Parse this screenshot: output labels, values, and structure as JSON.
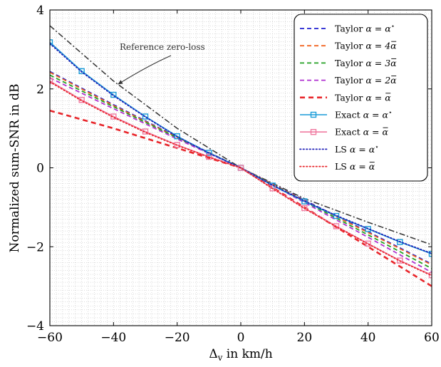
{
  "chart_data": {
    "type": "line",
    "title": "",
    "xlabel": "Δv in km/h",
    "xlabel_main": "Δ",
    "xlabel_sub": "v",
    "xlabel_rest": " in km/h",
    "ylabel": "Normalized sum-SNR in dB",
    "xlim": [
      -60,
      60
    ],
    "ylim": [
      -4,
      4
    ],
    "xticks": [
      -60,
      -40,
      -20,
      0,
      20,
      40,
      60
    ],
    "yticks": [
      -4,
      -2,
      0,
      2,
      4
    ],
    "xtick_labels": [
      "−60",
      "−40",
      "−20",
      "0",
      "20",
      "40",
      "60"
    ],
    "ytick_labels": [
      "−4",
      "−2",
      "0",
      "2",
      "4"
    ],
    "grid": "dense dotted minor grid",
    "legend_position": "top-right",
    "annotation": {
      "text": "Reference zero-loss",
      "target": [
        -40,
        2.1
      ]
    },
    "reference": {
      "name": "Reference zero-loss",
      "color": "#333333",
      "x": [
        -60,
        -40,
        -20,
        0,
        20,
        40,
        60
      ],
      "y": [
        3.6,
        2.2,
        1.0,
        0.0,
        -0.78,
        -1.38,
        -1.95
      ]
    },
    "series": [
      {
        "name": "Taylor α = α*",
        "label_prefix": "Taylor",
        "label_alpha": "α = α",
        "label_sup": "⋆",
        "label_bar": false,
        "color": "#1f1fd0",
        "style": "dashed",
        "x": [
          -60,
          -40,
          -20,
          0,
          20,
          40,
          60
        ],
        "y": [
          2.44,
          1.6,
          0.78,
          0.0,
          -0.82,
          -1.62,
          -2.44
        ]
      },
      {
        "name": "Taylor α = 4ᾱ",
        "label_prefix": "Taylor",
        "label_alpha": "α = 4α",
        "label_sup": "",
        "label_bar": true,
        "color": "#f26522",
        "style": "dashed",
        "x": [
          -60,
          -40,
          -20,
          0,
          20,
          40,
          60
        ],
        "y": [
          2.42,
          1.58,
          0.77,
          0.0,
          -0.83,
          -1.64,
          -2.46
        ]
      },
      {
        "name": "Taylor α = 3ᾱ",
        "label_prefix": "Taylor",
        "label_alpha": "α = 3α",
        "label_sup": "",
        "label_bar": true,
        "color": "#22a022",
        "style": "dashed",
        "x": [
          -60,
          -40,
          -20,
          0,
          20,
          40,
          60
        ],
        "y": [
          2.35,
          1.55,
          0.76,
          0.0,
          -0.85,
          -1.7,
          -2.55
        ]
      },
      {
        "name": "Taylor α = 2ᾱ",
        "label_prefix": "Taylor",
        "label_alpha": "α = 2α",
        "label_sup": "",
        "label_bar": true,
        "color": "#b030d0",
        "style": "dashed",
        "x": [
          -60,
          -40,
          -20,
          0,
          20,
          40,
          60
        ],
        "y": [
          2.28,
          1.5,
          0.73,
          0.0,
          -0.88,
          -1.76,
          -2.65
        ]
      },
      {
        "name": "Taylor α = ᾱ",
        "label_prefix": "Taylor",
        "label_alpha": "α = α",
        "label_sup": "",
        "label_bar": true,
        "color": "#e8262b",
        "style": "dashed-bold",
        "x": [
          -60,
          -40,
          -20,
          0,
          20,
          40,
          60
        ],
        "y": [
          1.45,
          1.0,
          0.5,
          0.0,
          -1.0,
          -2.0,
          -3.0
        ]
      },
      {
        "name": "Exact α = α*",
        "label_prefix": "Exact",
        "label_alpha": "α = α",
        "label_sup": "⋆",
        "label_bar": false,
        "color": "#1a9cd8",
        "style": "solid-square",
        "x": [
          -60,
          -50,
          -40,
          -30,
          -20,
          -10,
          0,
          10,
          20,
          30,
          40,
          50,
          60
        ],
        "y": [
          3.18,
          2.45,
          1.85,
          1.3,
          0.8,
          0.38,
          0.0,
          -0.45,
          -0.85,
          -1.22,
          -1.55,
          -1.88,
          -2.18
        ]
      },
      {
        "name": "Exact α = ᾱ",
        "label_prefix": "Exact",
        "label_alpha": "α = α",
        "label_sup": "",
        "label_bar": true,
        "color": "#f07aa0",
        "style": "solid-square",
        "x": [
          -60,
          -50,
          -40,
          -30,
          -20,
          -10,
          0,
          10,
          20,
          30,
          40,
          50,
          60
        ],
        "y": [
          2.2,
          1.72,
          1.3,
          0.92,
          0.58,
          0.28,
          0.0,
          -0.52,
          -1.02,
          -1.48,
          -1.92,
          -2.35,
          -2.72
        ]
      },
      {
        "name": "LS α = α*",
        "label_prefix": "LS",
        "label_alpha": "α = α",
        "label_sup": "⋆",
        "label_bar": false,
        "color": "#2020b8",
        "style": "dotted",
        "x": [
          -60,
          -50,
          -40,
          -30,
          -20,
          -10,
          0,
          10,
          20,
          30,
          40,
          50,
          60
        ],
        "y": [
          3.15,
          2.43,
          1.83,
          1.29,
          0.79,
          0.37,
          0.0,
          -0.44,
          -0.84,
          -1.21,
          -1.54,
          -1.87,
          -2.17
        ]
      },
      {
        "name": "LS α = ᾱ",
        "label_prefix": "LS",
        "label_alpha": "α = α",
        "label_sup": "",
        "label_bar": true,
        "color": "#e8262b",
        "style": "dotted",
        "x": [
          -60,
          -50,
          -40,
          -30,
          -20,
          -10,
          0,
          10,
          20,
          30,
          40,
          50,
          60
        ],
        "y": [
          2.18,
          1.7,
          1.28,
          0.9,
          0.57,
          0.27,
          0.0,
          -0.53,
          -1.03,
          -1.49,
          -1.93,
          -2.36,
          -2.73
        ]
      }
    ]
  }
}
